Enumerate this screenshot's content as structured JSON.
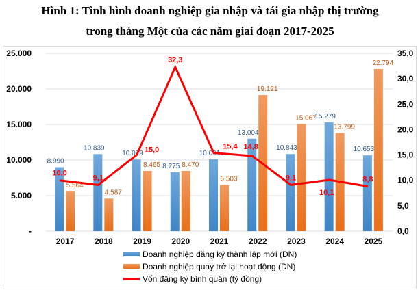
{
  "title_lines": [
    "Hình 1: Tình hình doanh nghiệp gia nhập và tái gia nhập thị trường",
    "trong tháng Một của các năm giai đoạn 2017-2025"
  ],
  "chart_data": {
    "type": "bar",
    "title": "Hình 1: Tình hình doanh nghiệp gia nhập và tái gia nhập thị trường trong tháng Một của các năm giai đoạn 2017-2025",
    "categories": [
      "2017",
      "2018",
      "2019",
      "2020",
      "2021",
      "2022",
      "2023",
      "2024",
      "2025"
    ],
    "series": [
      {
        "name": "Doanh nghiệp đăng ký thành lập mới (DN)",
        "type": "bar",
        "axis": "left",
        "color": "#5b9bd5",
        "values": [
          8990,
          10839,
          10079,
          8275,
          10091,
          13004,
          10843,
          15279,
          10653
        ],
        "labels": [
          "8.990",
          "10.839",
          "10.079",
          "8.275",
          "10.091",
          "13.004",
          "10.843",
          "15.279",
          "10.653"
        ]
      },
      {
        "name": "Doanh nghiệp quay trở lại hoạt động (DN)",
        "type": "bar",
        "axis": "left",
        "color": "#ed7d31",
        "values": [
          5564,
          4587,
          8465,
          8470,
          6503,
          19121,
          15067,
          13799,
          22794
        ],
        "labels": [
          "5.564",
          "4.587",
          "8.465",
          "8.470",
          "6.503",
          "19.121",
          "15.067",
          "13.799",
          "22.794"
        ]
      },
      {
        "name": "Vốn đăng ký bình quân (tỷ đồng)",
        "type": "line",
        "axis": "right",
        "color": "#ff0000",
        "values": [
          10.0,
          9.1,
          15.0,
          32.3,
          15.4,
          14.8,
          9.1,
          10.1,
          8.8
        ],
        "labels": [
          "10,0",
          "9,1",
          "15,0",
          "32,3",
          "15,4",
          "14,8",
          "9,1",
          "10,1",
          "8,8"
        ]
      }
    ],
    "y_left": {
      "range": [
        0,
        25000
      ],
      "ticks": [
        "-",
        "5.000",
        "10.000",
        "15.000",
        "20.000",
        "25.000"
      ]
    },
    "y_right": {
      "range": [
        0,
        35
      ],
      "ticks": [
        "0,0",
        "5,0",
        "10,0",
        "15,0",
        "20,0",
        "25,0",
        "30,0",
        "35,0"
      ]
    },
    "grid": true,
    "legend_position": "bottom"
  }
}
